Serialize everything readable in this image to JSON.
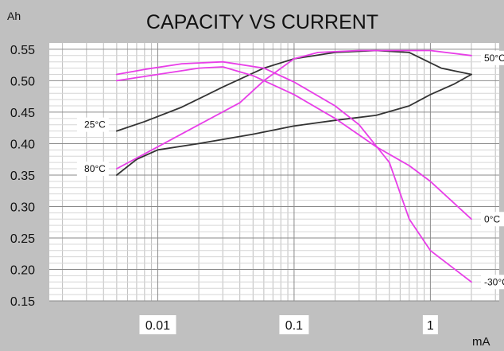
{
  "chart_data": {
    "type": "line",
    "title": "CAPACITY VS CURRENT",
    "ylabel": "Ah",
    "xlabel": "mA",
    "x_scale": "log",
    "xlim": [
      0.0016,
      3.2
    ],
    "ylim": [
      0.15,
      0.56
    ],
    "grid": true,
    "x_ticks": [
      0.01,
      0.1,
      1
    ],
    "x_tick_labels": [
      "0.01",
      "0.1",
      "1"
    ],
    "y_ticks": [
      0.15,
      0.2,
      0.25,
      0.3,
      0.35,
      0.4,
      0.45,
      0.5,
      0.55
    ],
    "y_tick_labels": [
      "0.15",
      "0.20",
      "0.25",
      "0.30",
      "0.35",
      "0.40",
      "0.45",
      "0.50",
      "0.55"
    ],
    "series": [
      {
        "name": "25°C",
        "label_side": "left",
        "color": "#333333",
        "points": [
          [
            0.005,
            0.42
          ],
          [
            0.008,
            0.435
          ],
          [
            0.015,
            0.458
          ],
          [
            0.03,
            0.49
          ],
          [
            0.06,
            0.52
          ],
          [
            0.1,
            0.535
          ],
          [
            0.2,
            0.545
          ],
          [
            0.4,
            0.548
          ],
          [
            0.7,
            0.545
          ],
          [
            1.2,
            0.52
          ],
          [
            2.0,
            0.51
          ]
        ]
      },
      {
        "name": "80°C",
        "label_side": "left",
        "color": "#333333",
        "points": [
          [
            0.005,
            0.35
          ],
          [
            0.007,
            0.375
          ],
          [
            0.01,
            0.39
          ],
          [
            0.02,
            0.4
          ],
          [
            0.05,
            0.415
          ],
          [
            0.1,
            0.428
          ],
          [
            0.2,
            0.437
          ],
          [
            0.4,
            0.445
          ],
          [
            0.7,
            0.46
          ],
          [
            1.0,
            0.478
          ],
          [
            1.5,
            0.495
          ],
          [
            2.0,
            0.51
          ]
        ]
      },
      {
        "name": "50°C",
        "label_side": "right",
        "color": "#e83ee8",
        "points": [
          [
            0.005,
            0.36
          ],
          [
            0.01,
            0.395
          ],
          [
            0.02,
            0.43
          ],
          [
            0.04,
            0.465
          ],
          [
            0.06,
            0.5
          ],
          [
            0.1,
            0.535
          ],
          [
            0.15,
            0.545
          ],
          [
            0.3,
            0.548
          ],
          [
            0.6,
            0.548
          ],
          [
            1.0,
            0.548
          ],
          [
            2.0,
            0.54
          ]
        ]
      },
      {
        "name": "0°C",
        "label_side": "right",
        "color": "#e83ee8",
        "points": [
          [
            0.005,
            0.5
          ],
          [
            0.01,
            0.51
          ],
          [
            0.02,
            0.52
          ],
          [
            0.03,
            0.522
          ],
          [
            0.05,
            0.508
          ],
          [
            0.1,
            0.478
          ],
          [
            0.2,
            0.44
          ],
          [
            0.4,
            0.395
          ],
          [
            0.7,
            0.365
          ],
          [
            1.0,
            0.34
          ],
          [
            2.0,
            0.28
          ]
        ]
      },
      {
        "name": "-30°C",
        "label_side": "right",
        "color": "#e83ee8",
        "points": [
          [
            0.005,
            0.51
          ],
          [
            0.008,
            0.518
          ],
          [
            0.015,
            0.527
          ],
          [
            0.03,
            0.53
          ],
          [
            0.06,
            0.52
          ],
          [
            0.1,
            0.498
          ],
          [
            0.2,
            0.46
          ],
          [
            0.3,
            0.43
          ],
          [
            0.5,
            0.37
          ],
          [
            0.7,
            0.28
          ],
          [
            1.0,
            0.23
          ],
          [
            2.0,
            0.18
          ]
        ]
      }
    ]
  }
}
